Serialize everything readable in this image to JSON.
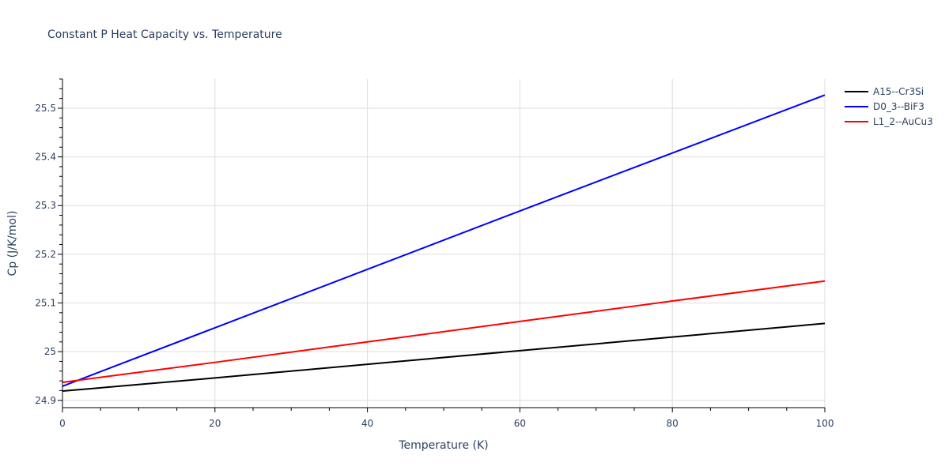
{
  "chart_data": {
    "type": "line",
    "title": "Constant P Heat Capacity vs. Temperature",
    "xlabel": "Temperature (K)",
    "ylabel": "Cp (J/K/mol)",
    "xlim": [
      0,
      100
    ],
    "ylim": [
      24.885,
      25.56
    ],
    "x_ticks": [
      0,
      20,
      40,
      60,
      80,
      100
    ],
    "y_ticks": [
      24.9,
      25,
      25.1,
      25.2,
      25.3,
      25.4,
      25.5
    ],
    "y_tick_labels": [
      "24.9",
      "25",
      "25.1",
      "25.2",
      "25.3",
      "25.4",
      "25.5"
    ],
    "grid": true,
    "legend_position": "right-top",
    "x": [
      0,
      20,
      40,
      60,
      80,
      100
    ],
    "series": [
      {
        "name": "A15--Cr3Si",
        "color": "#000000",
        "values": [
          24.919,
          24.946,
          24.974,
          25.002,
          25.03,
          25.058
        ]
      },
      {
        "name": "D0_3--BiF3",
        "color": "#0000ff",
        "values": [
          24.929,
          25.049,
          25.169,
          25.289,
          25.408,
          25.527
        ]
      },
      {
        "name": "L1_2--AuCu3",
        "color": "#ff0000",
        "values": [
          24.937,
          24.978,
          25.02,
          25.062,
          25.104,
          25.145
        ]
      }
    ]
  }
}
